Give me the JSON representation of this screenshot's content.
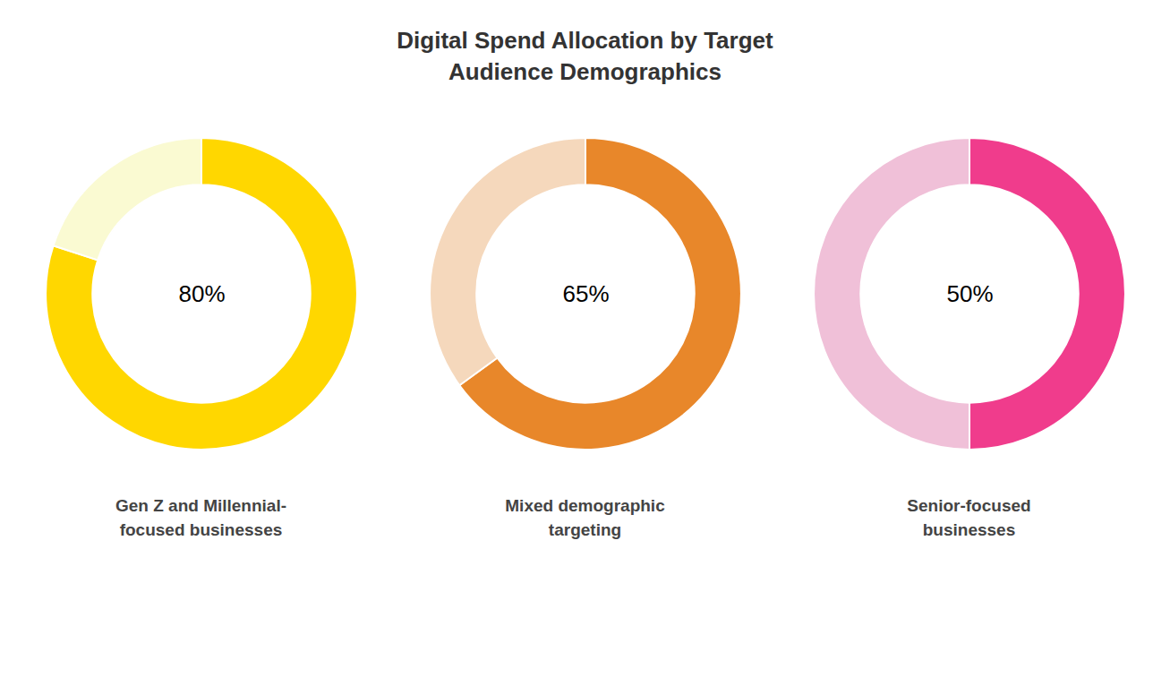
{
  "title": "Digital Spend Allocation by Target\nAudience Demographics",
  "chart_data": [
    {
      "type": "donut",
      "title": "Gen Z and Millennial-\nfocused businesses",
      "values": [
        80,
        20
      ],
      "value_labels": [
        "80%",
        null
      ],
      "colors": [
        "#FFD700",
        "#FAFAD2"
      ]
    },
    {
      "type": "donut",
      "title": "Mixed demographic\ntargeting",
      "values": [
        65,
        35
      ],
      "value_labels": [
        "65%",
        null
      ],
      "colors": [
        "#E8872A",
        "#F5D8BC"
      ]
    },
    {
      "type": "donut",
      "title": "Senior-focused\nbusinesses",
      "values": [
        50,
        50
      ],
      "value_labels": [
        "50%",
        null
      ],
      "colors": [
        "#F03C8C",
        "#F0C0D8"
      ]
    }
  ]
}
